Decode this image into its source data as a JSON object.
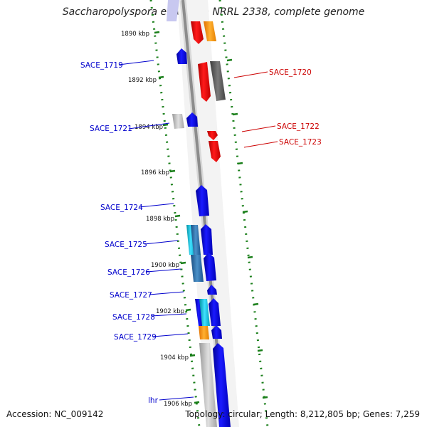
{
  "title": "Saccharopolyspora erythraea NRRL 2338, complete genome",
  "accession": "Accession: NC_009142",
  "topology": "Topology: circular; Length: 8,212,805 bp; Genes: 7,259",
  "colors": {
    "left_labels": "#0000cc",
    "right_labels": "#cc0000",
    "ruler": "#1a7f1a",
    "backbone": "#8c8c8c"
  },
  "ruler_left": [
    "1890 kbp",
    "1892 kbp",
    "1894 kbp",
    "1896 kbp",
    "1898 kbp",
    "1900 kbp",
    "1902 kbp",
    "1904 kbp",
    "1906 kbp"
  ],
  "genes_left": [
    "SACE_1719",
    "SACE_1721",
    "SACE_1724",
    "SACE_1725",
    "SACE_1726",
    "SACE_1727",
    "SACE_1728",
    "SACE_1729",
    "lhr"
  ],
  "genes_right": [
    "SACE_1720",
    "SACE_1722",
    "SACE_1723"
  ]
}
